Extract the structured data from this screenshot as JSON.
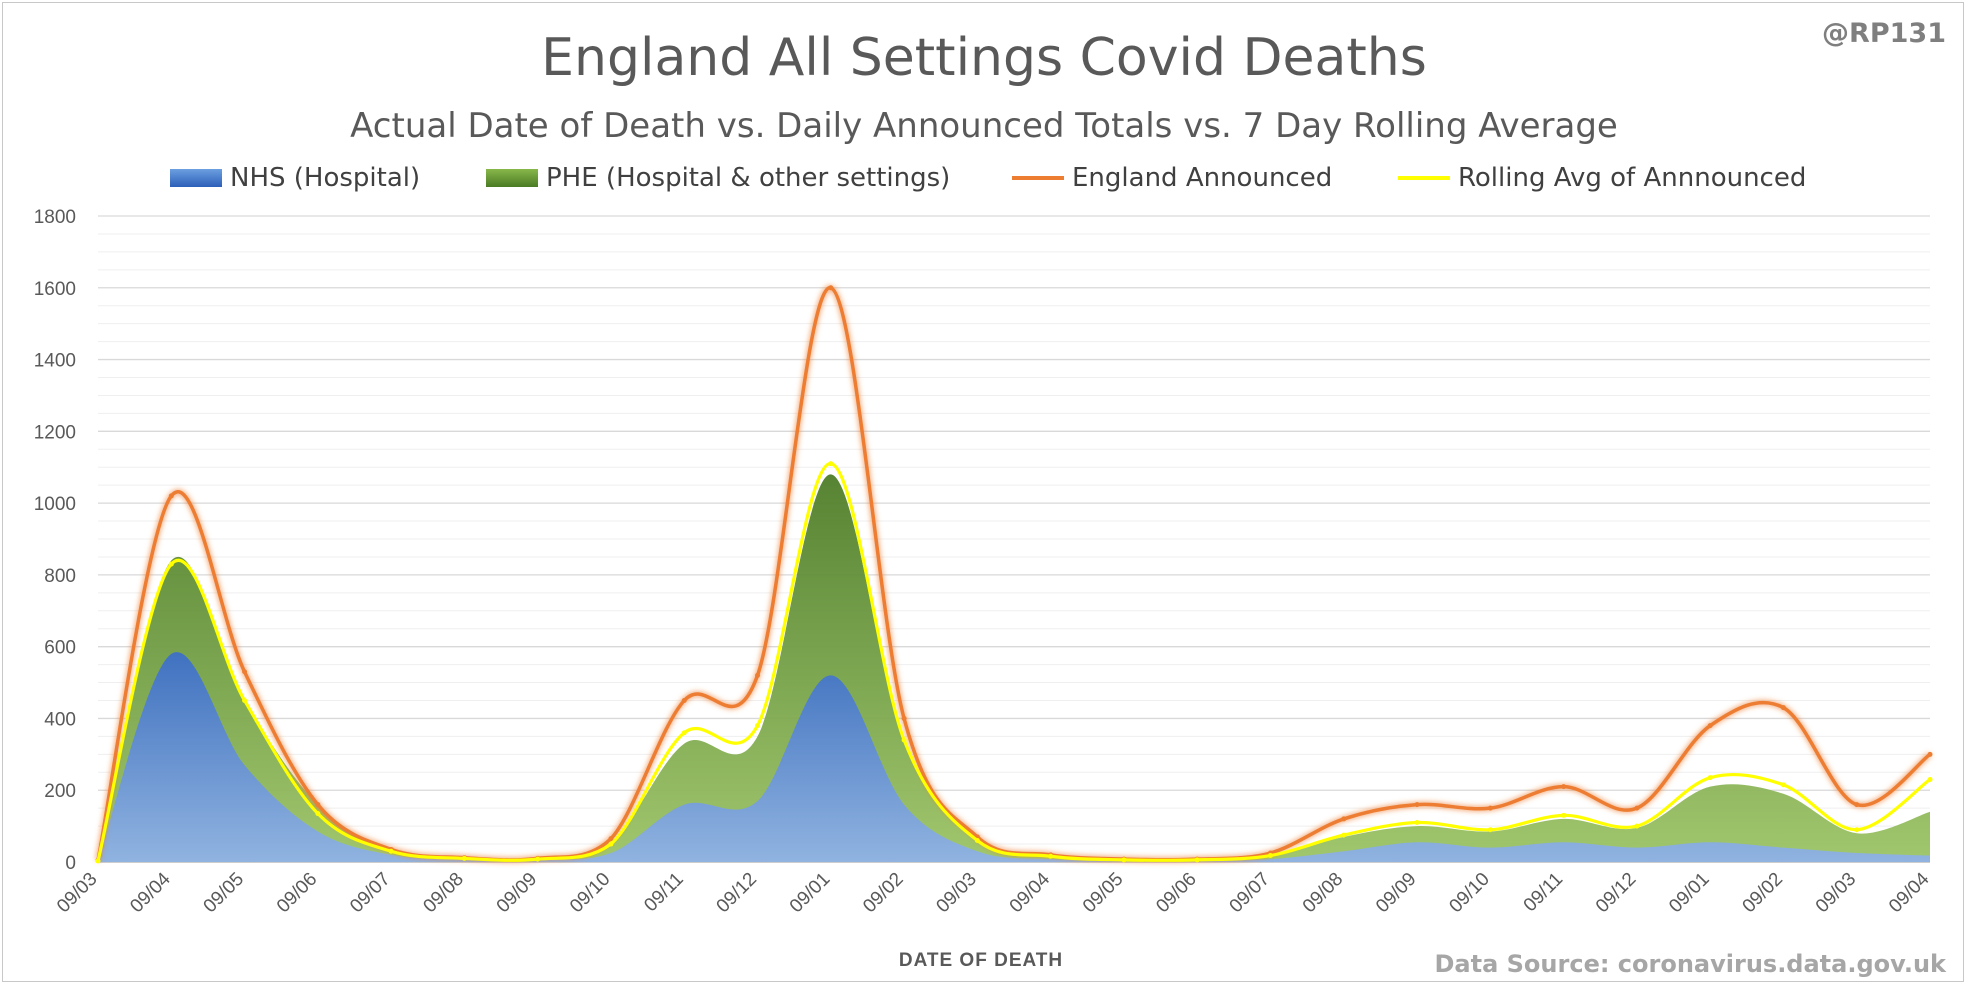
{
  "handle": "@RP131",
  "source": "Data Source: coronavirus.data.gov.uk",
  "chart_data": {
    "type": "area",
    "title": "England All Settings Covid Deaths",
    "subtitle": "Actual Date of Death vs. Daily Announced Totals vs. 7 Day Rolling Average",
    "xlabel": "DATE OF DEATH",
    "ylabel": "",
    "ylim": [
      0,
      1800
    ],
    "yticks": [
      0,
      200,
      400,
      600,
      800,
      1000,
      1200,
      1400,
      1600,
      1800
    ],
    "grid": true,
    "legend_position": "top",
    "categories": [
      "09/03",
      "09/04",
      "09/05",
      "09/06",
      "09/07",
      "09/08",
      "09/09",
      "09/10",
      "09/11",
      "09/12",
      "09/01",
      "09/02",
      "09/03",
      "09/04",
      "09/05",
      "09/06",
      "09/07",
      "09/08",
      "09/09",
      "09/10",
      "09/11",
      "09/12",
      "09/01",
      "09/02",
      "09/03",
      "09/04"
    ],
    "series": [
      {
        "name": "NHS (Hospital)",
        "kind": "area",
        "color": "#4472c4",
        "values": [
          2,
          580,
          270,
          85,
          20,
          6,
          6,
          25,
          160,
          170,
          520,
          160,
          30,
          8,
          3,
          3,
          8,
          30,
          55,
          40,
          55,
          40,
          55,
          40,
          25,
          18
        ]
      },
      {
        "name": "PHE (Hospital & other settings)",
        "kind": "area",
        "color": "#548235",
        "values": [
          3,
          840,
          450,
          160,
          35,
          10,
          8,
          55,
          330,
          350,
          1080,
          330,
          60,
          15,
          5,
          5,
          15,
          70,
          100,
          85,
          120,
          95,
          210,
          190,
          80,
          140
        ]
      },
      {
        "name": "England Announced",
        "kind": "line",
        "color": "#ed7d31",
        "values": [
          5,
          1020,
          530,
          160,
          35,
          12,
          10,
          65,
          450,
          520,
          1600,
          400,
          70,
          20,
          8,
          8,
          25,
          120,
          160,
          150,
          210,
          150,
          380,
          430,
          160,
          300
        ]
      },
      {
        "name": "Rolling Avg of Annnounced",
        "kind": "line",
        "color": "#ffff00",
        "values": [
          3,
          830,
          450,
          135,
          30,
          10,
          8,
          50,
          360,
          380,
          1110,
          340,
          60,
          16,
          6,
          6,
          18,
          75,
          110,
          90,
          130,
          100,
          235,
          215,
          90,
          230
        ]
      }
    ]
  }
}
